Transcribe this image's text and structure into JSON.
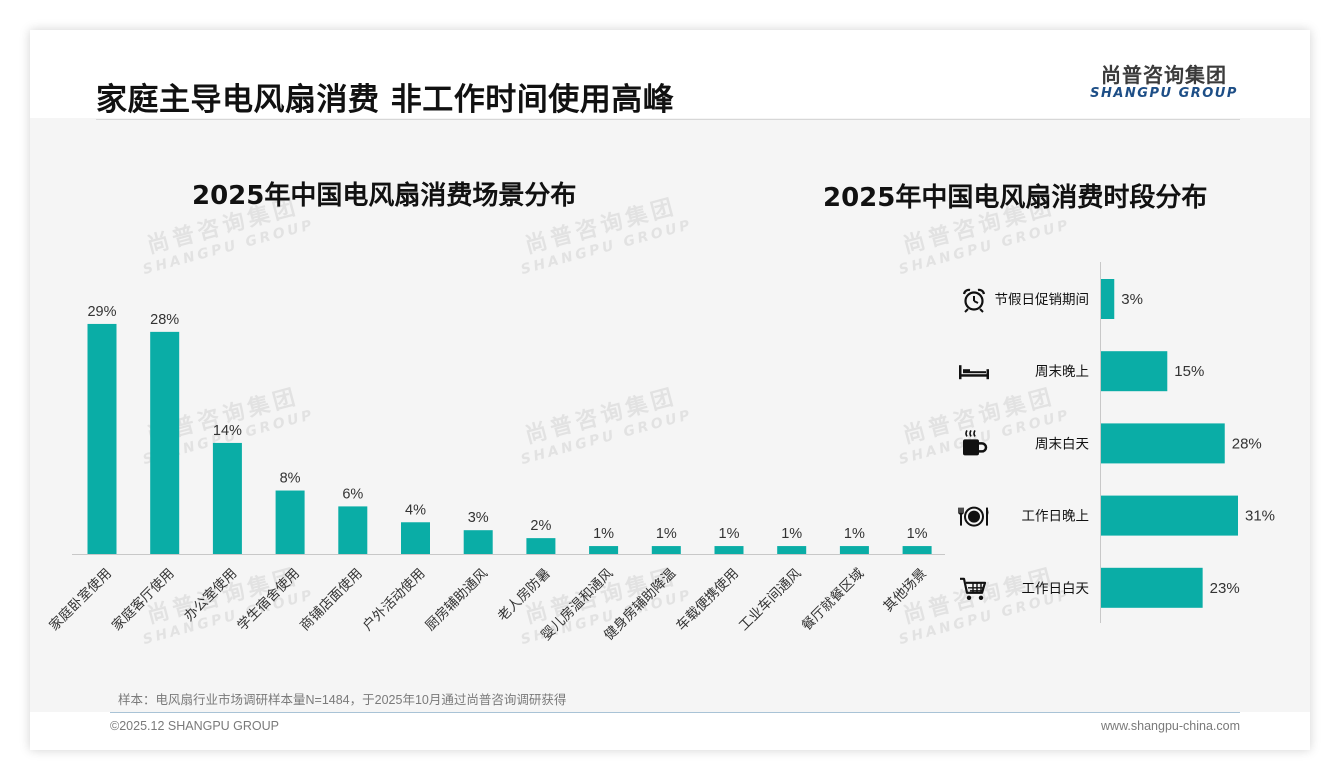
{
  "page": {
    "title": "家庭主导电风扇消费 非工作时间使用高峰",
    "logo_cn": "尚普咨询集团",
    "logo_en": "SHANGPU GROUP",
    "watermark_cn": "尚普咨询集团",
    "watermark_en": "SHANGPU GROUP",
    "note": "样本：电风扇行业市场调研样本量N=1484，于2025年10月通过尚普咨询调研获得",
    "copyright": "©2025.12 SHANGPU GROUP",
    "website": "www.shangpu-china.com"
  },
  "colors": {
    "bar": "#0aada6",
    "title": "#111111",
    "logo_en": "#1d4e86",
    "axis": "#c8c8c8",
    "label": "#333333"
  },
  "chart_data": [
    {
      "type": "bar",
      "title": "2025年中国电风扇消费场景分布",
      "categories": [
        "家庭卧室使用",
        "家庭客厅使用",
        "办公室使用",
        "学生宿舍使用",
        "商铺店面使用",
        "户外活动使用",
        "厨房辅助通风",
        "老人房防暑",
        "婴儿房温和通风",
        "健身房辅助降温",
        "车载便携使用",
        "工业车间通风",
        "餐厅就餐区域",
        "其他场景"
      ],
      "values": [
        29,
        28,
        14,
        8,
        6,
        4,
        3,
        2,
        1,
        1,
        1,
        1,
        1,
        1
      ],
      "value_unit": "%",
      "data_labels": [
        "29%",
        "28%",
        "14%",
        "8%",
        "6%",
        "4%",
        "3%",
        "2%",
        "1%",
        "1%",
        "1%",
        "1%",
        "1%",
        "1%"
      ],
      "ylim": [
        0,
        30
      ],
      "grid": false,
      "legend": "none"
    },
    {
      "type": "bar",
      "orientation": "horizontal",
      "title": "2025年中国电风扇消费时段分布",
      "categories": [
        "节假日促销期间",
        "周末晚上",
        "周末白天",
        "工作日晚上",
        "工作日白天"
      ],
      "icons": [
        "alarm-clock-icon",
        "bed-icon",
        "coffee-cup-icon",
        "dining-icon",
        "shopping-cart-icon"
      ],
      "values": [
        3,
        15,
        28,
        31,
        23
      ],
      "value_unit": "%",
      "data_labels": [
        "3%",
        "15%",
        "28%",
        "31%",
        "23%"
      ],
      "xlim": [
        0,
        31
      ],
      "grid": false,
      "legend": "none"
    }
  ]
}
